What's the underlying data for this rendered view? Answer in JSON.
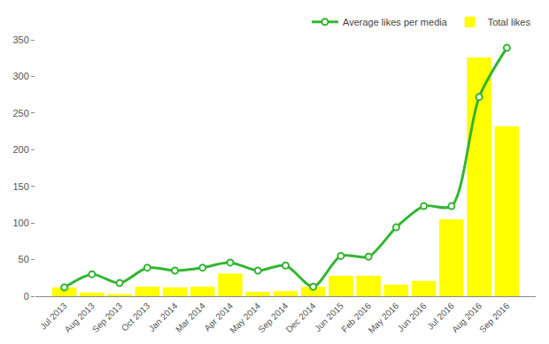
{
  "chart_data": {
    "type": "bar",
    "categories": [
      "Jul 2013",
      "Aug 2013",
      "Sep 2013",
      "Oct 2013",
      "Jan 2014",
      "Mar 2014",
      "Apr 2014",
      "May 2014",
      "Sep 2014",
      "Dec 2014",
      "Jun 2015",
      "Feb 2016",
      "May 2016",
      "Jun 2016",
      "Jul 2016",
      "Aug 2016",
      "Sep 2016"
    ],
    "series": [
      {
        "name": "Average likes per media",
        "type": "line",
        "color": "#33b533",
        "marker": "circle",
        "line_style": "solid",
        "values": [
          12,
          30,
          18,
          39,
          35,
          39,
          46,
          35,
          42,
          13,
          55,
          54,
          94,
          123,
          123,
          272,
          339
        ]
      },
      {
        "name": "Total likes",
        "type": "bar",
        "color": "#ffff00",
        "values": [
          12,
          5,
          3,
          13,
          12,
          13,
          31,
          6,
          7,
          13,
          28,
          28,
          16,
          21,
          105,
          326,
          232
        ]
      }
    ],
    "ylim": [
      0,
      350
    ],
    "yticks": [
      0,
      50,
      100,
      150,
      200,
      250,
      300,
      350
    ],
    "grid": false,
    "legend": "upper right"
  }
}
